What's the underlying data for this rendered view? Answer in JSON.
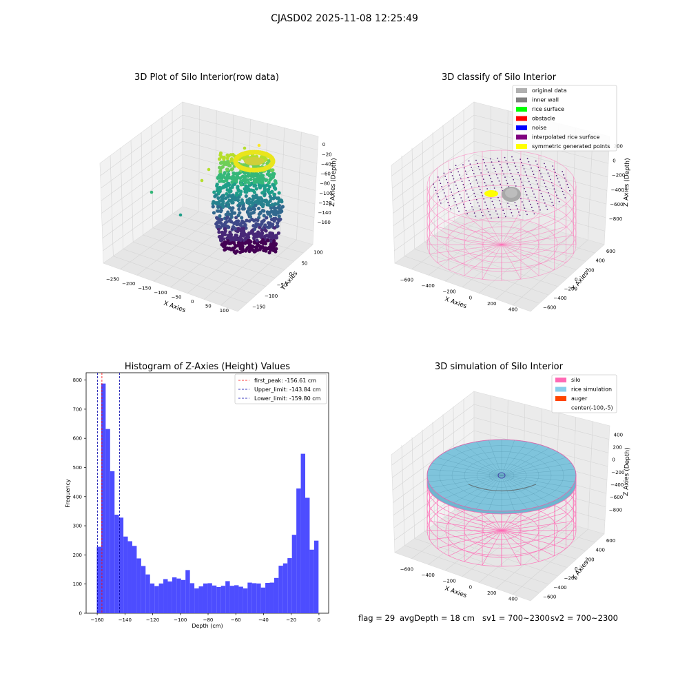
{
  "figure": {
    "suptitle": "CJASD02 2025-11-08 12:25:49",
    "status_line": {
      "flag": "flag = 29",
      "avg_depth": "avgDepth = 18 cm",
      "sv1": "sv1 = 700~2300",
      "sv2": "sv2 = 700~2300"
    }
  },
  "chart_data": [
    {
      "type": "scatter",
      "title": "3D Plot of Silo Interior(row data)",
      "xlabel": "X Axies",
      "ylabel": "Y Axies",
      "zlabel": "Z Axies (Depth)",
      "x_ticks": [
        "−250",
        "−200",
        "−150",
        "−100",
        "−50",
        "0",
        "50",
        "100"
      ],
      "y_ticks": [
        "−150",
        "−100",
        "−50",
        "0",
        "50",
        "100"
      ],
      "z_ticks": [
        "0",
        "−20",
        "−40",
        "−60",
        "−80",
        "−100",
        "−120",
        "−140",
        "−160"
      ],
      "xlim": [
        -270,
        110
      ],
      "ylim": [
        -160,
        110
      ],
      "zlim": [
        -170,
        5
      ],
      "colormap": "viridis",
      "grid": true
    },
    {
      "type": "scatter",
      "title": "3D classify of Silo Interior",
      "xlabel": "X Axies",
      "ylabel": "Y Axies",
      "zlabel": "Z Axies (Depth)",
      "x_ticks": [
        "−600",
        "−400",
        "−200",
        "0",
        "200",
        "400"
      ],
      "y_ticks": [
        "−600",
        "−400",
        "−200",
        "0",
        "200",
        "400",
        "600"
      ],
      "z_ticks": [
        "200",
        "0",
        "−200",
        "−400",
        "−600",
        "−800"
      ],
      "legend_position": "upper-right",
      "legend": [
        {
          "label": "original data",
          "color": "#b0b0b0"
        },
        {
          "label": "inner wall",
          "color": "#808080"
        },
        {
          "label": "rice surface",
          "color": "#00ff00"
        },
        {
          "label": "obstacle",
          "color": "#ff0000"
        },
        {
          "label": "noise",
          "color": "#0000ff"
        },
        {
          "label": "interpolated rice surface",
          "color": "#800080"
        },
        {
          "label": "symmetric generated points",
          "color": "#ffff00"
        }
      ],
      "grid": true
    },
    {
      "type": "bar",
      "title": "Histogram of Z-Axies (Height) Values",
      "xlabel": "Depth (cm)",
      "ylabel": "Frequency",
      "xlim": [
        -168,
        7
      ],
      "ylim": [
        0,
        825
      ],
      "x_ticks": [
        -160,
        -140,
        -120,
        -100,
        -80,
        -60,
        -40,
        -20,
        0
      ],
      "x_tick_labels": [
        "−160",
        "−140",
        "−120",
        "−100",
        "−80",
        "−60",
        "−40",
        "−20",
        "0"
      ],
      "y_ticks": [
        0,
        100,
        200,
        300,
        400,
        500,
        600,
        700,
        800
      ],
      "bin_start": -160.3,
      "bin_width": 3.2,
      "values": [
        228,
        788,
        632,
        487,
        338,
        328,
        263,
        247,
        231,
        188,
        162,
        133,
        102,
        93,
        102,
        117,
        109,
        123,
        119,
        114,
        148,
        103,
        85,
        92,
        102,
        103,
        95,
        90,
        94,
        110,
        94,
        96,
        91,
        85,
        105,
        103,
        102,
        88,
        104,
        105,
        121,
        163,
        171,
        189,
        269,
        428,
        547,
        396,
        218,
        249
      ],
      "bar_color": "#4d4dff",
      "reference_lines": [
        {
          "label": "first_peak: -156.61 cm",
          "x": -156.61,
          "color": "#ff0000"
        },
        {
          "label": "Upper_limit: -143.84 cm",
          "x": -143.84,
          "color": "#0000aa"
        },
        {
          "label": "Lower_limit: -159.80 cm",
          "x": -159.8,
          "color": "#0000aa"
        }
      ],
      "legend_position": "upper-right"
    },
    {
      "type": "scatter",
      "title": "3D simulation of Silo Interior",
      "xlabel": "X Axies",
      "ylabel": "Y Axies",
      "zlabel": "Z Axies (Depth)",
      "x_ticks": [
        "−600",
        "−400",
        "−200",
        "0",
        "200",
        "400"
      ],
      "y_ticks": [
        "−600",
        "−400",
        "−200",
        "0",
        "200",
        "400",
        "600"
      ],
      "z_ticks": [
        "400",
        "200",
        "0",
        "−200",
        "−400",
        "−600",
        "−800"
      ],
      "legend_position": "upper-right",
      "legend": [
        {
          "label": "silo",
          "color": "#ff69b4"
        },
        {
          "label": "rice simulation",
          "color": "#87ceeb"
        },
        {
          "label": "auger",
          "color": "#ff4500"
        },
        {
          "label": "center(-100,-5)",
          "color": ""
        }
      ],
      "grid": true
    }
  ]
}
